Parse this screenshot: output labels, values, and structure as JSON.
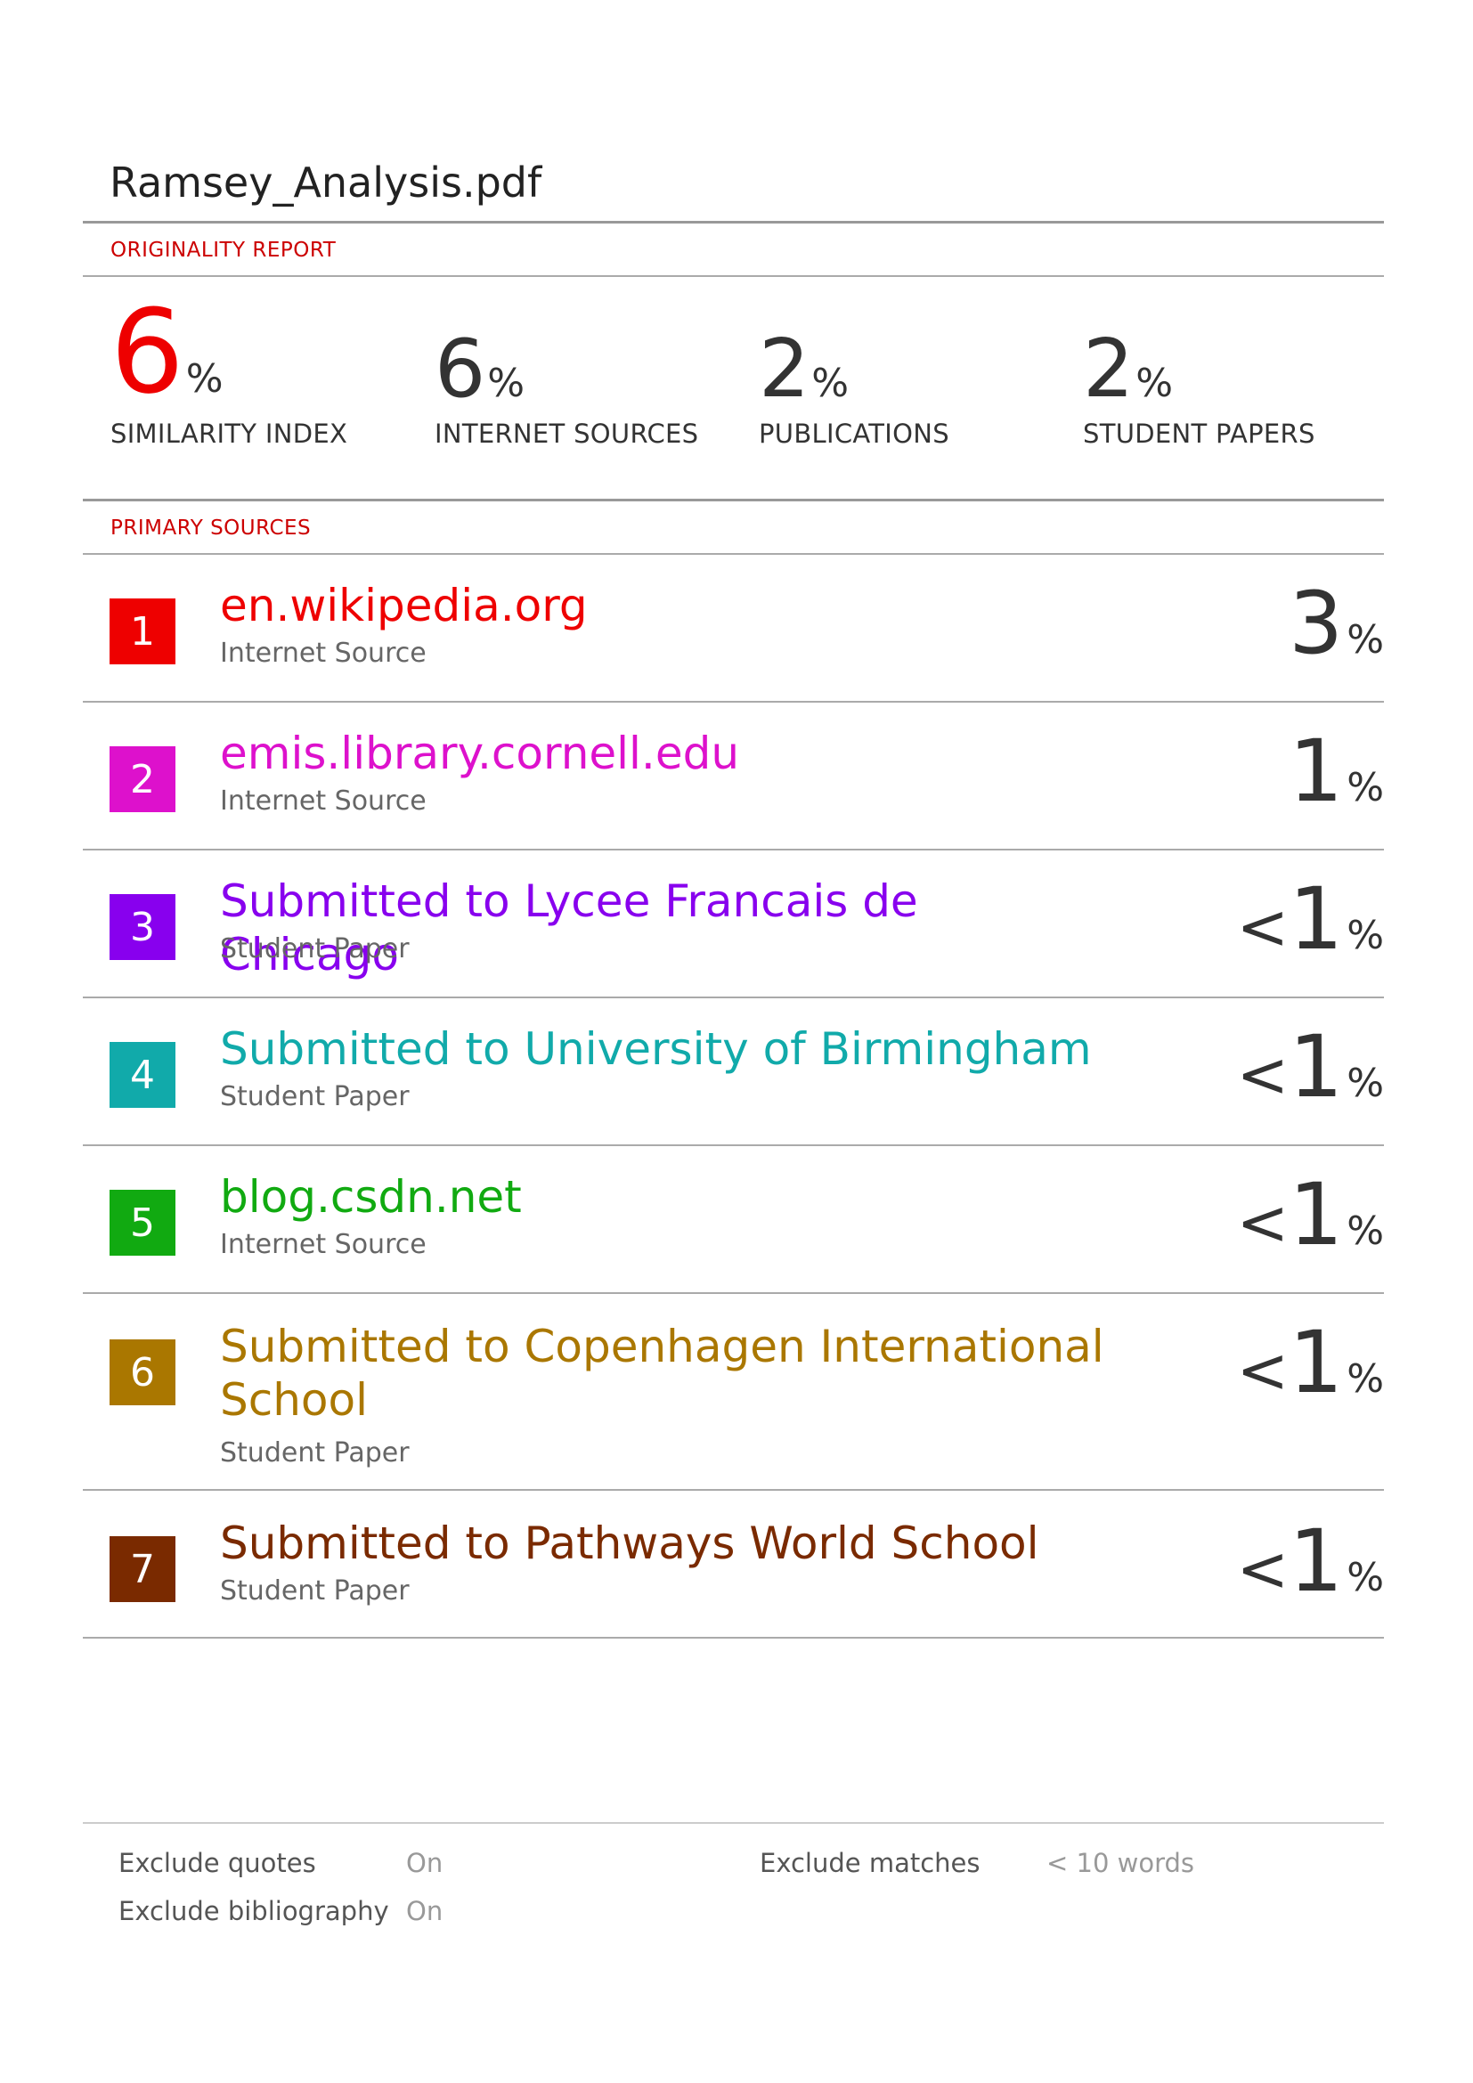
{
  "document": {
    "filename": "Ramsey_Analysis.pdf"
  },
  "report": {
    "section_label": "ORIGINALITY REPORT"
  },
  "stats": [
    {
      "value": "6",
      "pct": "%",
      "label": "SIMILARITY INDEX",
      "color": "#ee0000"
    },
    {
      "value": "6",
      "pct": "%",
      "label": "INTERNET SOURCES",
      "color": "#333333"
    },
    {
      "value": "2",
      "pct": "%",
      "label": "PUBLICATIONS",
      "color": "#333333"
    },
    {
      "value": "2",
      "pct": "%",
      "label": "STUDENT PAPERS",
      "color": "#333333"
    }
  ],
  "primary": {
    "section_label": "PRIMARY SOURCES"
  },
  "sources": [
    {
      "rank": "1",
      "title": "en.wikipedia.org",
      "type": "Internet Source",
      "lt": "",
      "value": "3",
      "pct": "%",
      "color": "#ee0000"
    },
    {
      "rank": "2",
      "title": "emis.library.cornell.edu",
      "type": "Internet Source",
      "lt": "",
      "value": "1",
      "pct": "%",
      "color": "#dd11cc"
    },
    {
      "rank": "3",
      "title": "Submitted to Lycee Francais de Chicago",
      "type": "Student Paper",
      "lt": "<",
      "value": "1",
      "pct": "%",
      "color": "#8800ee"
    },
    {
      "rank": "4",
      "title": "Submitted to University of Birmingham",
      "type": "Student Paper",
      "lt": "<",
      "value": "1",
      "pct": "%",
      "color": "#11aaaa"
    },
    {
      "rank": "5",
      "title": "blog.csdn.net",
      "type": "Internet Source",
      "lt": "<",
      "value": "1",
      "pct": "%",
      "color": "#11aa11"
    },
    {
      "rank": "6",
      "title": "Submitted to Copenhagen International School",
      "type": "Student Paper",
      "lt": "<",
      "value": "1",
      "pct": "%",
      "color": "#aa7700"
    },
    {
      "rank": "7",
      "title": "Submitted to Pathways World School",
      "type": "Student Paper",
      "lt": "<",
      "value": "1",
      "pct": "%",
      "color": "#7a2a00"
    }
  ],
  "footer": {
    "exclude_quotes_label": "Exclude quotes",
    "exclude_quotes_value": "On",
    "exclude_bibliography_label": "Exclude bibliography",
    "exclude_bibliography_value": "On",
    "exclude_matches_label": "Exclude matches",
    "exclude_matches_value": "< 10 words"
  }
}
